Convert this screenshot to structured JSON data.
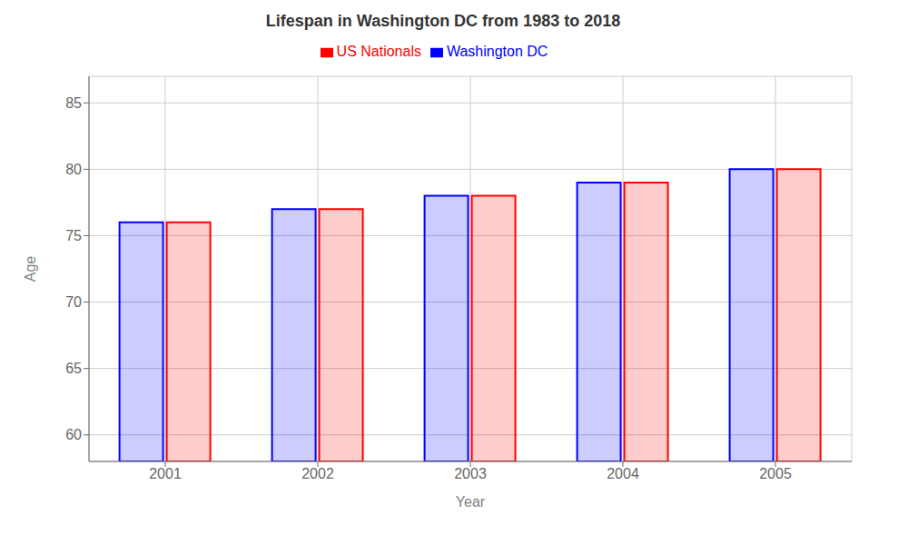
{
  "chart_data": {
    "type": "bar",
    "title": "Lifespan in Washington DC from 1983 to 2018",
    "xlabel": "Year",
    "ylabel": "Age",
    "categories": [
      "2001",
      "2002",
      "2003",
      "2004",
      "2005"
    ],
    "series": [
      {
        "name": "Washington DC",
        "color": "#0000ff",
        "values": [
          76,
          77,
          78,
          79,
          80
        ]
      },
      {
        "name": "US Nationals",
        "color": "#ff0000",
        "values": [
          76,
          77,
          78,
          79,
          80
        ]
      }
    ],
    "ylim": [
      58,
      87
    ],
    "yticks": [
      60,
      65,
      70,
      75,
      80,
      85
    ],
    "grid": true,
    "legend": "top"
  }
}
